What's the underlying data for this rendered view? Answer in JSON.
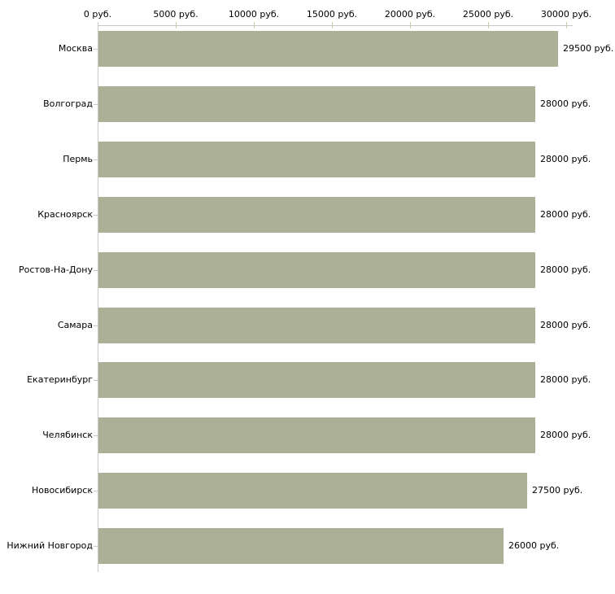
{
  "chart_data": {
    "type": "bar",
    "orientation": "horizontal",
    "title": "",
    "xlabel": "",
    "ylabel": "",
    "categories": [
      "Москва",
      "Волгоград",
      "Пермь",
      "Красноярск",
      "Ростов-На-Дону",
      "Самара",
      "Екатеринбург",
      "Челябинск",
      "Новосибирск",
      "Нижний Новгород"
    ],
    "values": [
      29500,
      28000,
      28000,
      28000,
      28000,
      28000,
      28000,
      28000,
      27500,
      26000
    ],
    "value_labels": [
      "29500 руб.",
      "28000 руб.",
      "28000 руб.",
      "28000 руб.",
      "28000 руб.",
      "28000 руб.",
      "28000 руб.",
      "28000 руб.",
      "27500 руб.",
      "26000 руб."
    ],
    "x_ticks": [
      0,
      5000,
      10000,
      15000,
      20000,
      25000,
      30000
    ],
    "x_tick_labels": [
      "0 руб.",
      "5000 руб.",
      "10000 руб.",
      "15000 руб.",
      "20000 руб.",
      "25000 руб.",
      "30000 руб."
    ],
    "xlim": [
      0,
      30000
    ],
    "grid": false,
    "legend": null,
    "colors": {
      "bar_fill": "#abb097",
      "axis_line": "#c8c8c8",
      "tick_mark": "#c9cca8",
      "text": "#000000",
      "background": "#ffffff"
    }
  }
}
